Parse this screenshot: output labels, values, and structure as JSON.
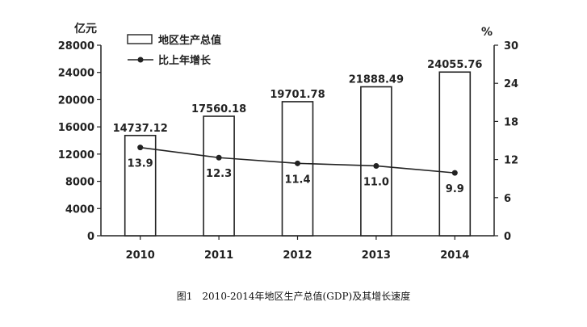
{
  "chart_data": {
    "type": "bar",
    "categories": [
      "2010",
      "2011",
      "2012",
      "2013",
      "2014"
    ],
    "series": [
      {
        "name": "地区生产总值",
        "type": "bar",
        "axis": "left",
        "values": [
          14737.12,
          17560.18,
          19701.78,
          21888.49,
          24055.76
        ],
        "labels": [
          "14737.12",
          "17560.18",
          "19701.78",
          "21888.49",
          "24055.76"
        ]
      },
      {
        "name": "比上年增长",
        "type": "line",
        "axis": "right",
        "values": [
          13.9,
          12.3,
          11.4,
          11.0,
          9.9
        ],
        "labels": [
          "13.9",
          "12.3",
          "11.4",
          "11.0",
          "9.9"
        ]
      }
    ],
    "y_left": {
      "unit": "亿元",
      "ylim": [
        0,
        28000
      ],
      "ticks": [
        "0",
        "4000",
        "8000",
        "12000",
        "16000",
        "20000",
        "24000",
        "28000"
      ]
    },
    "y_right": {
      "unit": "%",
      "ylim": [
        0,
        30
      ],
      "ticks": [
        "0",
        "6",
        "12",
        "18",
        "24",
        "30"
      ]
    },
    "legend_position": "top-left",
    "grid": false
  },
  "caption": "图1　2010-2014年地区生产总值(GDP)及其增长速度",
  "colors": {
    "ink": "#222222",
    "bar_fill": "#ffffff"
  }
}
